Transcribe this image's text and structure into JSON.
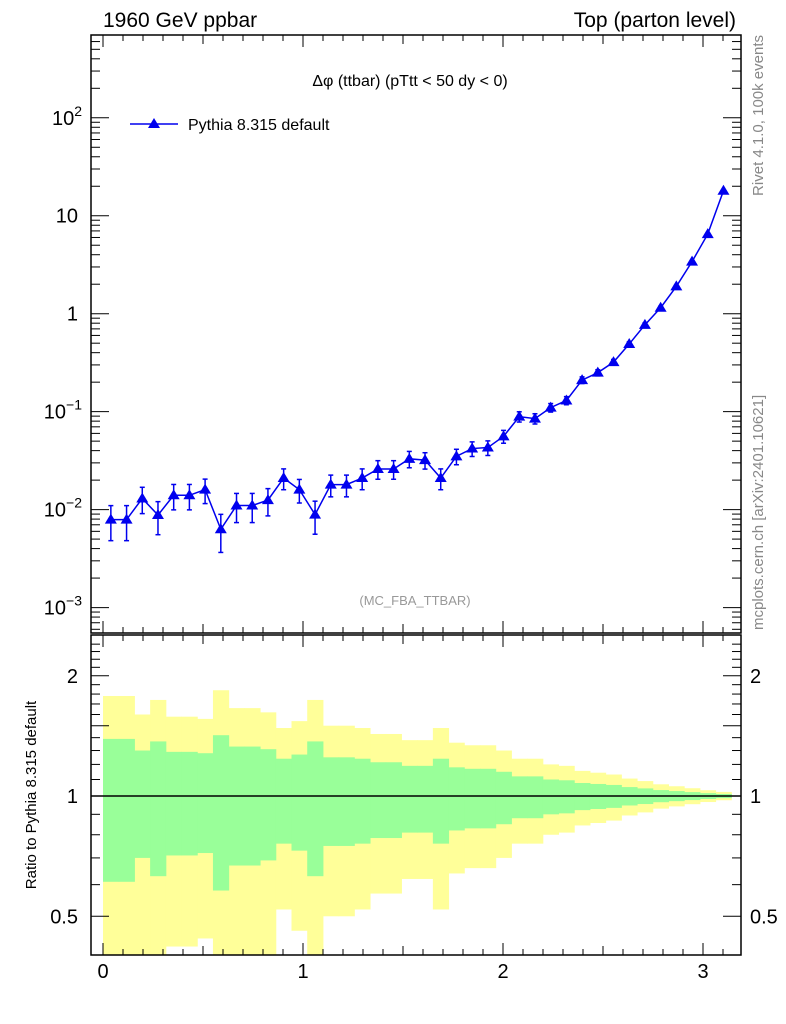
{
  "header": {
    "left": "1960 GeV ppbar",
    "right": "Top (parton level)"
  },
  "side_labels": {
    "rivet": "Rivet 4.1.0,  100k events",
    "mcplots": "mcplots.cern.ch [arXiv:2401.10621]"
  },
  "chart_data": [
    {
      "type": "line",
      "title": "Δφ (ttbar) (pTtt < 50 dy < 0)",
      "analysis_tag": "(MC_FBA_TTBAR)",
      "xlabel": "",
      "ylabel": "",
      "yscale": "log",
      "xlim": [
        -0.06,
        3.19
      ],
      "ylim": [
        0.00055,
        700
      ],
      "x_ticks": [
        "0",
        "1",
        "2",
        "3"
      ],
      "y_ticks": [
        {
          "value": 100,
          "base": "10",
          "exp": "2"
        },
        {
          "value": 10,
          "base": "10",
          "exp": ""
        },
        {
          "value": 1,
          "base": "1",
          "exp": ""
        },
        {
          "value": 0.1,
          "base": "10",
          "exp": "−1"
        },
        {
          "value": 0.01,
          "base": "10",
          "exp": "−2"
        },
        {
          "value": 0.001,
          "base": "10",
          "exp": "−3"
        }
      ],
      "legend": {
        "placement": "top-left",
        "entries": [
          "Pythia 8.315 default"
        ]
      },
      "series": [
        {
          "name": "Pythia 8.315 default",
          "color": "#0000ee",
          "marker": "triangle",
          "nbins": 40,
          "x_min": 0,
          "x_max": 3.14159,
          "values": [
            0.0079,
            0.0079,
            0.013,
            0.0088,
            0.014,
            0.014,
            0.016,
            0.0063,
            0.011,
            0.011,
            0.0125,
            0.021,
            0.016,
            0.0089,
            0.018,
            0.018,
            0.021,
            0.026,
            0.026,
            0.033,
            0.032,
            0.021,
            0.035,
            0.042,
            0.043,
            0.056,
            0.089,
            0.085,
            0.11,
            0.13,
            0.21,
            0.25,
            0.32,
            0.49,
            0.77,
            1.15,
            1.9,
            3.4,
            6.5,
            18
          ],
          "rel_errors": [
            0.39,
            0.39,
            0.3,
            0.37,
            0.29,
            0.29,
            0.28,
            0.42,
            0.33,
            0.33,
            0.31,
            0.24,
            0.27,
            0.37,
            0.25,
            0.25,
            0.24,
            0.215,
            0.215,
            0.19,
            0.19,
            0.24,
            0.18,
            0.17,
            0.17,
            0.15,
            0.12,
            0.12,
            0.1,
            0.095,
            0.078,
            0.072,
            0.066,
            0.053,
            0.045,
            0.035,
            0.029,
            0.023,
            0.017,
            0.012
          ]
        }
      ]
    },
    {
      "type": "area",
      "ylabel": "Ratio to Pythia 8.315 default",
      "yscale": "log",
      "ylim": [
        0.4,
        2.53
      ],
      "y_ticks": [
        "2",
        "1",
        "0.5"
      ],
      "y_tick_values": [
        2,
        1,
        0.5
      ],
      "bands": [
        {
          "name": "1 sigma",
          "color": "#99ff99",
          "scale": 1
        },
        {
          "name": "2 sigma",
          "color": "#ffff99",
          "scale": 2
        }
      ],
      "reference_line": 1
    }
  ]
}
